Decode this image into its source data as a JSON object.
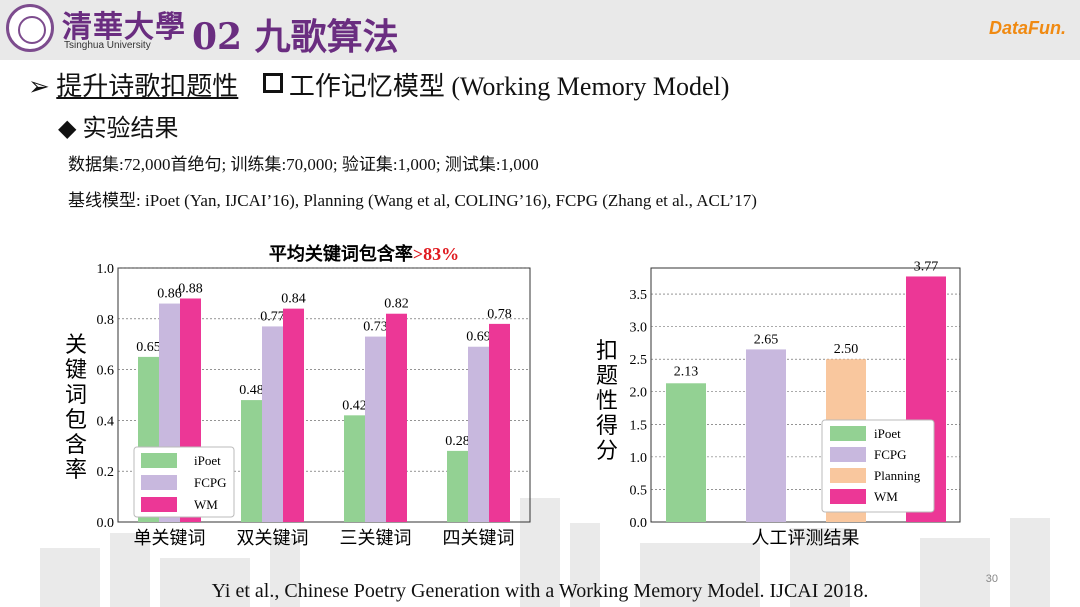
{
  "header": {
    "logo_cn": "清華大學",
    "logo_en": "Tsinghua University",
    "title": "02 九歌算法",
    "brand": "DataFun."
  },
  "bullets": {
    "level1_marker": "➢",
    "level1_text": "提升诗歌扣题性",
    "level1_sub": "工作记忆模型  (Working Memory Model)",
    "level2_marker": "◆",
    "level2_text": "实验结果",
    "dataset_line": "数据集:72,000首绝句; 训练集:70,000; 验证集:1,000; 测试集:1,000",
    "baseline_line": "基线模型: iPoet (Yan, IJCAI’16), Planning (Wang et al, COLING’16), FCPG (Zhang et al., ACL’17)"
  },
  "colors": {
    "iPoet": "#93d193",
    "FCPG": "#c8b8de",
    "Planning": "#f9c79e",
    "WM": "#ec3796",
    "highlight": "#e0191f"
  },
  "chart_data": [
    {
      "type": "bar",
      "title": "平均关键词包含率",
      "title_highlight": ">83%",
      "ylabel": "关键词包含率",
      "xlabel": "",
      "categories": [
        "单关键词",
        "双关键词",
        "三关键词",
        "四关键词"
      ],
      "series": [
        {
          "name": "iPoet",
          "values": [
            0.65,
            0.48,
            0.42,
            0.28
          ]
        },
        {
          "name": "FCPG",
          "values": [
            0.86,
            0.77,
            0.73,
            0.69
          ]
        },
        {
          "name": "WM",
          "values": [
            0.88,
            0.84,
            0.82,
            0.78
          ]
        }
      ],
      "value_labels": [
        [
          "0.65",
          "0.86",
          "0.88"
        ],
        [
          "0.48",
          "0.77",
          "0.84"
        ],
        [
          "0.42",
          "0.73",
          "0.82"
        ],
        [
          "0.28",
          "0.69",
          "0.78"
        ]
      ],
      "ylim": [
        0,
        1.0
      ],
      "yticks": [
        "0.0",
        "0.2",
        "0.4",
        "0.6",
        "0.8",
        "1.0"
      ],
      "grid": true,
      "legend": "bottom-left"
    },
    {
      "type": "bar",
      "title": "",
      "ylabel": "扣题性得分",
      "xlabel": "",
      "categories": [
        "人工评测结果"
      ],
      "series": [
        {
          "name": "iPoet",
          "values": [
            2.13
          ]
        },
        {
          "name": "FCPG",
          "values": [
            2.65
          ]
        },
        {
          "name": "Planning",
          "values": [
            2.5
          ]
        },
        {
          "name": "WM",
          "values": [
            3.77
          ]
        }
      ],
      "value_labels": [
        "2.13",
        "2.65",
        "2.50",
        "3.77"
      ],
      "ylim": [
        0,
        3.9
      ],
      "yticks": [
        "0.0",
        "0.5",
        "1.0",
        "1.5",
        "2.0",
        "2.5",
        "3.0",
        "3.5"
      ],
      "grid": true,
      "legend": "center-right"
    }
  ],
  "footer": {
    "citation": "Yi et al., Chinese Poetry Generation with a Working Memory Model. IJCAI 2018.",
    "page_number": "30"
  }
}
